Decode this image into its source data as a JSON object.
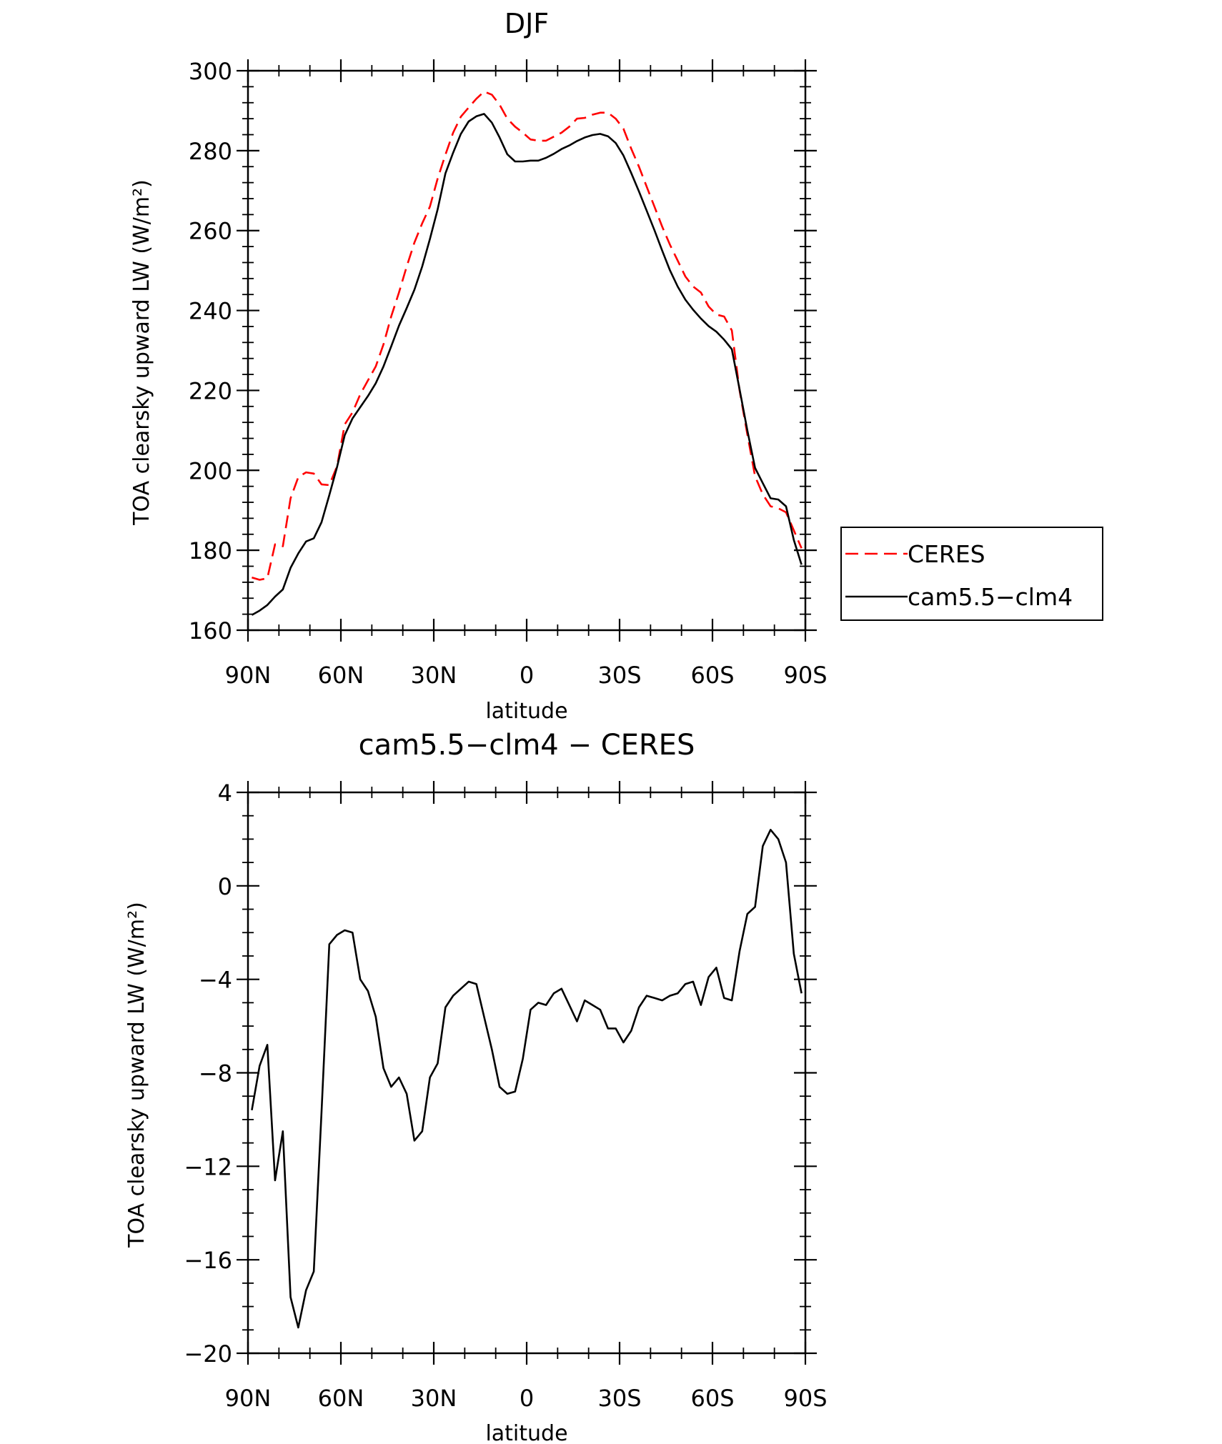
{
  "chart_data": [
    {
      "type": "line",
      "title": "DJF",
      "xlabel": "latitude",
      "ylabel": "TOA clearsky upward LW (W/m²)",
      "xlim": [
        90,
        -90
      ],
      "ylim": [
        160,
        300
      ],
      "x_ticks": [
        90,
        60,
        30,
        0,
        -30,
        -60,
        -90
      ],
      "x_tick_labels": [
        "90N",
        "60N",
        "30N",
        "0",
        "30S",
        "60S",
        "90S"
      ],
      "y_ticks": [
        160,
        180,
        200,
        220,
        240,
        260,
        280,
        300
      ],
      "y_tick_labels": [
        "160",
        "180",
        "200",
        "220",
        "240",
        "260",
        "280",
        "300"
      ],
      "grid": false,
      "legend_position": "right",
      "series": [
        {
          "name": "CERES",
          "color": "#ff0000",
          "dash": "dashed",
          "x": [
            88.75,
            86.25,
            83.75,
            81.25,
            78.75,
            76.25,
            73.75,
            71.25,
            68.75,
            66.25,
            63.75,
            61.25,
            58.75,
            56.25,
            53.75,
            51.25,
            48.75,
            46.25,
            43.75,
            41.25,
            38.75,
            36.25,
            33.75,
            31.25,
            28.75,
            26.25,
            23.75,
            21.25,
            18.75,
            16.25,
            13.75,
            11.25,
            8.75,
            6.25,
            3.75,
            1.25,
            -1.25,
            -3.75,
            -6.25,
            -8.75,
            -11.25,
            -13.75,
            -16.25,
            -18.75,
            -21.25,
            -23.75,
            -26.25,
            -28.75,
            -31.25,
            -33.75,
            -36.25,
            -38.75,
            -41.25,
            -43.75,
            -46.25,
            -48.75,
            -51.25,
            -53.75,
            -56.25,
            -58.75,
            -61.25,
            -63.75,
            -66.25,
            -68.75,
            -71.25,
            -73.75,
            -76.25,
            -78.75,
            -81.25,
            -83.75,
            -86.25,
            -88.75
          ],
          "y": [
            173.2,
            172.6,
            173.0,
            181.5,
            181.0,
            193.0,
            198.3,
            199.5,
            199.2,
            196.5,
            196.3,
            201.0,
            211.5,
            214.5,
            219.0,
            222.5,
            226.0,
            231.5,
            238.5,
            244.5,
            251.0,
            257.0,
            261.8,
            266.0,
            273.0,
            279.0,
            284.5,
            288.5,
            290.8,
            293.0,
            294.8,
            294.0,
            291.5,
            288.0,
            286.0,
            284.5,
            282.8,
            282.5,
            282.5,
            283.5,
            284.5,
            286.0,
            288.0,
            288.2,
            289.0,
            289.5,
            289.5,
            288.0,
            285.5,
            280.5,
            276.0,
            271.0,
            266.0,
            261.0,
            256.5,
            252.5,
            248.5,
            246.0,
            244.5,
            241.0,
            239.0,
            238.5,
            235.0,
            220.0,
            209.0,
            198.5,
            194.0,
            191.0,
            190.5,
            189.5,
            185.0,
            180.5
          ]
        },
        {
          "name": "cam5.5−clm4",
          "color": "#000000",
          "dash": "solid",
          "x": [
            88.75,
            86.25,
            83.75,
            81.25,
            78.75,
            76.25,
            73.75,
            71.25,
            68.75,
            66.25,
            63.75,
            61.25,
            58.75,
            56.25,
            53.75,
            51.25,
            48.75,
            46.25,
            43.75,
            41.25,
            38.75,
            36.25,
            33.75,
            31.25,
            28.75,
            26.25,
            23.75,
            21.25,
            18.75,
            16.25,
            13.75,
            11.25,
            8.75,
            6.25,
            3.75,
            1.25,
            -1.25,
            -3.75,
            -6.25,
            -8.75,
            -11.25,
            -13.75,
            -16.25,
            -18.75,
            -21.25,
            -23.75,
            -26.25,
            -28.75,
            -31.25,
            -33.75,
            -36.25,
            -38.75,
            -41.25,
            -43.75,
            -46.25,
            -48.75,
            -51.25,
            -53.75,
            -56.25,
            -58.75,
            -61.25,
            -63.75,
            -66.25,
            -68.75,
            -71.25,
            -73.75,
            -76.25,
            -78.75,
            -81.25,
            -83.75,
            -86.25,
            -88.75
          ],
          "y": [
            163.8,
            164.9,
            166.3,
            168.4,
            170.2,
            175.6,
            179.2,
            182.2,
            183.0,
            187.0,
            193.8,
            200.8,
            208.8,
            213.0,
            215.8,
            218.6,
            221.8,
            226.0,
            231.0,
            236.2,
            240.6,
            245.2,
            251.0,
            257.9,
            265.3,
            274.3,
            279.5,
            284.2,
            287.3,
            288.6,
            289.2,
            287.0,
            283.3,
            279.1,
            277.3,
            277.3,
            277.5,
            277.5,
            278.2,
            279.2,
            280.4,
            281.3,
            282.4,
            283.3,
            283.9,
            284.2,
            283.6,
            281.9,
            278.8,
            274.4,
            269.8,
            265.0,
            260.1,
            255.0,
            250.1,
            246.0,
            242.7,
            240.2,
            238.0,
            236.1,
            234.7,
            232.7,
            230.3,
            220.3,
            210.0,
            200.6,
            196.8,
            193.0,
            192.7,
            191.0,
            182.6,
            176.4
          ]
        }
      ]
    },
    {
      "type": "line",
      "title": "cam5.5−clm4 − CERES",
      "xlabel": "latitude",
      "ylabel": "TOA clearsky upward LW (W/m²)",
      "xlim": [
        90,
        -90
      ],
      "ylim": [
        -20,
        4
      ],
      "x_ticks": [
        90,
        60,
        30,
        0,
        -30,
        -60,
        -90
      ],
      "x_tick_labels": [
        "90N",
        "60N",
        "30N",
        "0",
        "30S",
        "60S",
        "90S"
      ],
      "y_ticks": [
        -20,
        -16,
        -12,
        -8,
        -4,
        0,
        4
      ],
      "y_tick_labels": [
        "−20",
        "−16",
        "−12",
        "−8",
        "−4",
        "0",
        "4"
      ],
      "grid": false,
      "series": [
        {
          "color": "#000000",
          "dash": "solid",
          "x": [
            88.75,
            86.25,
            83.75,
            81.25,
            78.75,
            76.25,
            73.75,
            71.25,
            68.75,
            66.25,
            63.75,
            61.25,
            58.75,
            56.25,
            53.75,
            51.25,
            48.75,
            46.25,
            43.75,
            41.25,
            38.75,
            36.25,
            33.75,
            31.25,
            28.75,
            26.25,
            23.75,
            21.25,
            18.75,
            16.25,
            13.75,
            11.25,
            8.75,
            6.25,
            3.75,
            1.25,
            -1.25,
            -3.75,
            -6.25,
            -8.75,
            -11.25,
            -13.75,
            -16.25,
            -18.75,
            -21.25,
            -23.75,
            -26.25,
            -28.75,
            -31.25,
            -33.75,
            -36.25,
            -38.75,
            -41.25,
            -43.75,
            -46.25,
            -48.75,
            -51.25,
            -53.75,
            -56.25,
            -58.75,
            -61.25,
            -63.75,
            -66.25,
            -68.75,
            -71.25,
            -73.75,
            -76.25,
            -78.75,
            -81.25,
            -83.75,
            -86.25,
            -88.75
          ],
          "y": [
            -9.6,
            -7.7,
            -6.8,
            -12.6,
            -10.5,
            -17.6,
            -18.9,
            -17.3,
            -16.5,
            -9.7,
            -2.5,
            -2.1,
            -1.9,
            -2.0,
            -4.0,
            -4.5,
            -5.6,
            -7.8,
            -8.6,
            -8.2,
            -8.9,
            -10.9,
            -10.5,
            -8.2,
            -7.6,
            -5.2,
            -4.7,
            -4.4,
            -4.1,
            -4.2,
            -5.6,
            -7.0,
            -8.6,
            -8.9,
            -8.8,
            -7.4,
            -5.3,
            -5.0,
            -5.1,
            -4.6,
            -4.4,
            -5.1,
            -5.8,
            -4.9,
            -5.1,
            -5.3,
            -6.1,
            -6.1,
            -6.7,
            -6.2,
            -5.2,
            -4.7,
            -4.8,
            -4.9,
            -4.7,
            -4.6,
            -4.2,
            -4.1,
            -5.1,
            -3.9,
            -3.5,
            -4.8,
            -4.9,
            -2.8,
            -1.2,
            -0.9,
            1.7,
            2.4,
            2.0,
            1.0,
            -2.9,
            -4.6
          ]
        }
      ]
    }
  ]
}
